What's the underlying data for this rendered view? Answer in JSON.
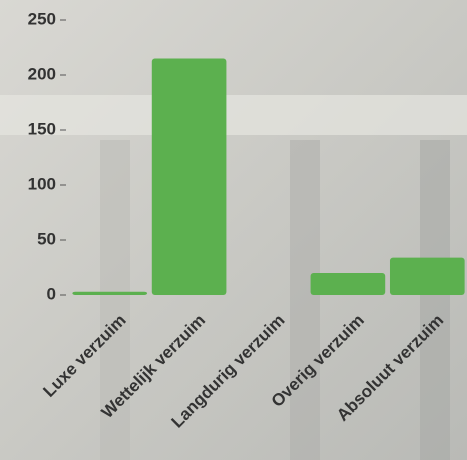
{
  "chart_data": {
    "type": "bar",
    "categories": [
      "Luxe verzuim",
      "Wettelijk verzuim",
      "Langdurig verzuim",
      "Overig verzuim",
      "Absoluut verzuim"
    ],
    "values": [
      3,
      215,
      0,
      20,
      34
    ],
    "color": "#5cb04f",
    "ylim": [
      0,
      250
    ],
    "yticks": [
      0,
      50,
      100,
      150,
      200,
      250
    ],
    "grid": false
  }
}
